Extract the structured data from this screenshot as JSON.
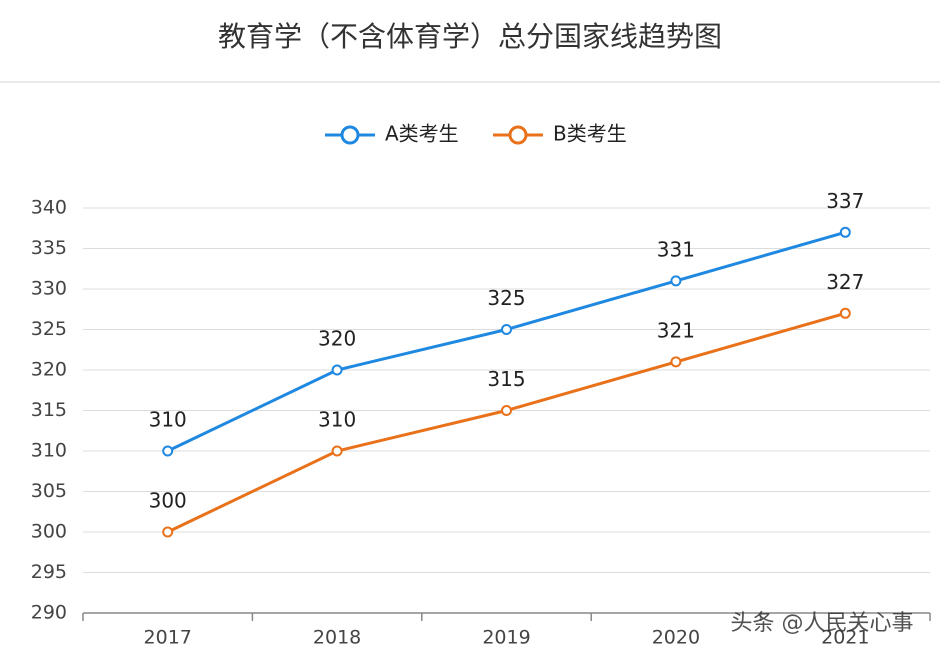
{
  "chart_data": {
    "type": "line",
    "title": "教育学（不含体育学）总分国家线趋势图",
    "categories": [
      "2017",
      "2018",
      "2019",
      "2020",
      "2021"
    ],
    "series": [
      {
        "name": "A类考生",
        "color": "#1f88e0",
        "values": [
          310,
          320,
          325,
          331,
          337
        ]
      },
      {
        "name": "B类考生",
        "color": "#e8711a",
        "values": [
          300,
          310,
          315,
          321,
          327
        ]
      }
    ],
    "ylim": [
      290,
      340
    ],
    "yticks": [
      290,
      295,
      300,
      305,
      310,
      315,
      320,
      325,
      330,
      335,
      340
    ],
    "grid": true,
    "legend": "top",
    "data_labels": true,
    "watermark": "头条 @人民关心事"
  }
}
